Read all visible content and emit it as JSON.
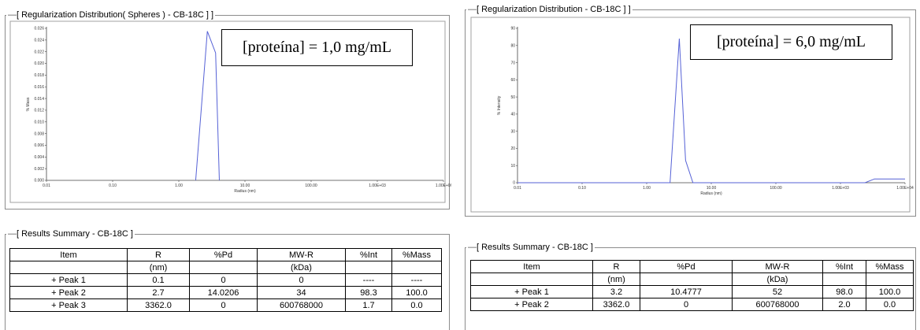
{
  "charts": [
    {
      "title_lead": "—",
      "title": "[ Regularization Distribution( Spheres ) - CB-18C ] ]",
      "annotation": "[proteína] = 1,0 mg/mL",
      "ylabel": "% Mass",
      "xlabel": "Radius (nm)",
      "xticks": [
        "0.01",
        "0.10",
        "1.00",
        "10.00",
        "100.00",
        "1.00E+03",
        "1.00E+0/"
      ],
      "yticks": [
        "0.000",
        "0.002",
        "0.004",
        "0.006",
        "0.008",
        "0.010",
        "0.012",
        "0.014",
        "0.016",
        "0.018",
        "0.020",
        "0.022",
        "0.024",
        "0.026"
      ]
    },
    {
      "title_lead": "—",
      "title": "[ Regularization Distribution - CB-18C ] ]",
      "annotation": "[proteína] = 6,0 mg/mL",
      "ylabel": "% Intensity",
      "xlabel": "Radius (nm)",
      "xticks": [
        "0.01",
        "0.10",
        "1.00",
        "10.00",
        "100.00",
        "1.00E+03",
        "1.00E+04"
      ],
      "yticks": [
        "0",
        "10",
        "20",
        "30",
        "40",
        "50",
        "60",
        "70",
        "80",
        "90"
      ]
    }
  ],
  "chart_data": [
    {
      "type": "line",
      "title": "[ Regularization Distribution( Spheres ) - CB-18C ] ]",
      "xlabel": "Radius (nm)",
      "ylabel": "% Mass",
      "xscale": "log",
      "xlim": [
        0.01,
        10000
      ],
      "ylim": [
        0,
        0.026
      ],
      "grid": false,
      "series": [
        {
          "color": "#5561d6",
          "x": [
            1.8,
            2.7,
            3.6,
            4.1
          ],
          "y": [
            0,
            0.0255,
            0.0218,
            0
          ]
        }
      ]
    },
    {
      "type": "line",
      "title": "[ Regularization Distribution - CB-18C ] ]",
      "xlabel": "Radius (nm)",
      "ylabel": "% Intensity",
      "xscale": "log",
      "xlim": [
        0.01,
        10000
      ],
      "ylim": [
        0,
        90
      ],
      "grid": false,
      "series": [
        {
          "color": "#5561d6",
          "x": [
            0.01,
            2.3,
            3.2,
            4.0,
            5.2,
            2400,
            3362,
            10000
          ],
          "y": [
            0,
            0,
            84,
            13,
            0,
            0,
            2.2,
            2.2
          ]
        }
      ]
    }
  ],
  "summaries": [
    {
      "title_lead": "—",
      "title": "[ Results Summary - CB-18C ]",
      "headers": [
        "Item",
        "R",
        "%Pd",
        "MW-R",
        "%Int",
        "%Mass"
      ],
      "units": [
        "",
        "(nm)",
        "",
        "(kDa)",
        "",
        ""
      ],
      "rows": [
        [
          "+ Peak 1",
          "0.1",
          "0",
          "0",
          "----",
          "----"
        ],
        [
          "+ Peak 2",
          "2.7",
          "14.0206",
          "34",
          "98.3",
          "100.0"
        ],
        [
          "+ Peak 3",
          "3362.0",
          "0",
          "600768000",
          "1.7",
          "0.0"
        ]
      ]
    },
    {
      "title_lead": "—",
      "title": "[ Results Summary - CB-18C ]",
      "headers": [
        "Item",
        "R",
        "%Pd",
        "MW-R",
        "%Int",
        "%Mass"
      ],
      "units": [
        "",
        "(nm)",
        "",
        "(kDa)",
        "",
        ""
      ],
      "rows": [
        [
          "+ Peak 1",
          "3.2",
          "10.4777",
          "52",
          "98.0",
          "100.0"
        ],
        [
          "+ Peak 2",
          "3362.0",
          "0",
          "600768000",
          "2.0",
          "0.0"
        ]
      ]
    }
  ]
}
